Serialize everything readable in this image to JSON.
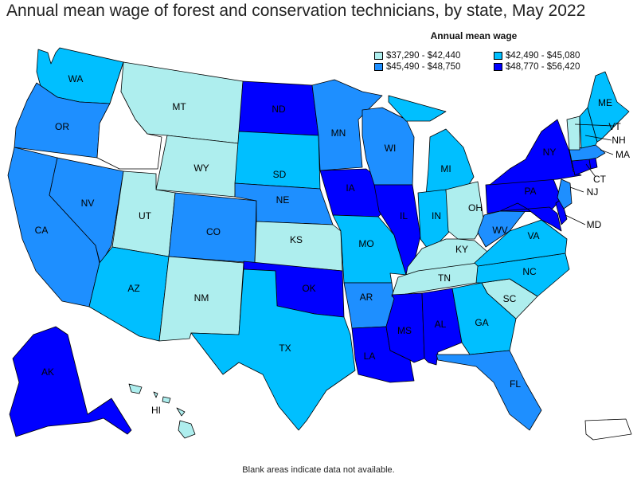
{
  "title": "Annual mean wage of forest and conservation technicians, by state, May 2022",
  "legend": {
    "title": "Annual mean wage",
    "bins": [
      {
        "label": "$37,290 - $42,440",
        "color": "#aeeeee"
      },
      {
        "label": "$42,490 - $45,080",
        "color": "#00bfff"
      },
      {
        "label": "$45,490 - $48,750",
        "color": "#1e8fff"
      },
      {
        "label": "$48,770 - $56,420",
        "color": "#0000ff"
      }
    ]
  },
  "no_data_color": "#ffffff",
  "note": "Blank areas indicate data not available.",
  "chart_data": {
    "type": "choropleth",
    "title": "Annual mean wage of forest and conservation technicians, by state, May 2022",
    "states": [
      {
        "code": "WA",
        "bin": 1
      },
      {
        "code": "OR",
        "bin": 2
      },
      {
        "code": "CA",
        "bin": 2
      },
      {
        "code": "NV",
        "bin": 2
      },
      {
        "code": "ID",
        "bin": null
      },
      {
        "code": "MT",
        "bin": 0
      },
      {
        "code": "WY",
        "bin": 0
      },
      {
        "code": "UT",
        "bin": 0
      },
      {
        "code": "AZ",
        "bin": 1
      },
      {
        "code": "CO",
        "bin": 2
      },
      {
        "code": "NM",
        "bin": 0
      },
      {
        "code": "ND",
        "bin": 3
      },
      {
        "code": "SD",
        "bin": 1
      },
      {
        "code": "NE",
        "bin": 2
      },
      {
        "code": "KS",
        "bin": 0
      },
      {
        "code": "OK",
        "bin": 3
      },
      {
        "code": "TX",
        "bin": 1
      },
      {
        "code": "MN",
        "bin": 2
      },
      {
        "code": "IA",
        "bin": 3
      },
      {
        "code": "MO",
        "bin": 1
      },
      {
        "code": "AR",
        "bin": 2
      },
      {
        "code": "LA",
        "bin": 3
      },
      {
        "code": "WI",
        "bin": 2
      },
      {
        "code": "IL",
        "bin": 3
      },
      {
        "code": "MI",
        "bin": 1
      },
      {
        "code": "IN",
        "bin": 1
      },
      {
        "code": "OH",
        "bin": 0
      },
      {
        "code": "KY",
        "bin": 0
      },
      {
        "code": "TN",
        "bin": 0
      },
      {
        "code": "MS",
        "bin": 3
      },
      {
        "code": "AL",
        "bin": 3
      },
      {
        "code": "GA",
        "bin": 1
      },
      {
        "code": "FL",
        "bin": 2
      },
      {
        "code": "SC",
        "bin": 0
      },
      {
        "code": "NC",
        "bin": 1
      },
      {
        "code": "VA",
        "bin": 1
      },
      {
        "code": "WV",
        "bin": 2
      },
      {
        "code": "PA",
        "bin": 3
      },
      {
        "code": "NY",
        "bin": 3
      },
      {
        "code": "MD",
        "bin": 3
      },
      {
        "code": "DE",
        "bin": 3
      },
      {
        "code": "NJ",
        "bin": 2
      },
      {
        "code": "CT",
        "bin": 3
      },
      {
        "code": "RI",
        "bin": 3
      },
      {
        "code": "MA",
        "bin": 2
      },
      {
        "code": "VT",
        "bin": 0
      },
      {
        "code": "NH",
        "bin": 1
      },
      {
        "code": "ME",
        "bin": 1
      },
      {
        "code": "AK",
        "bin": 3
      },
      {
        "code": "HI",
        "bin": 0
      },
      {
        "code": "PR",
        "bin": null
      }
    ]
  }
}
